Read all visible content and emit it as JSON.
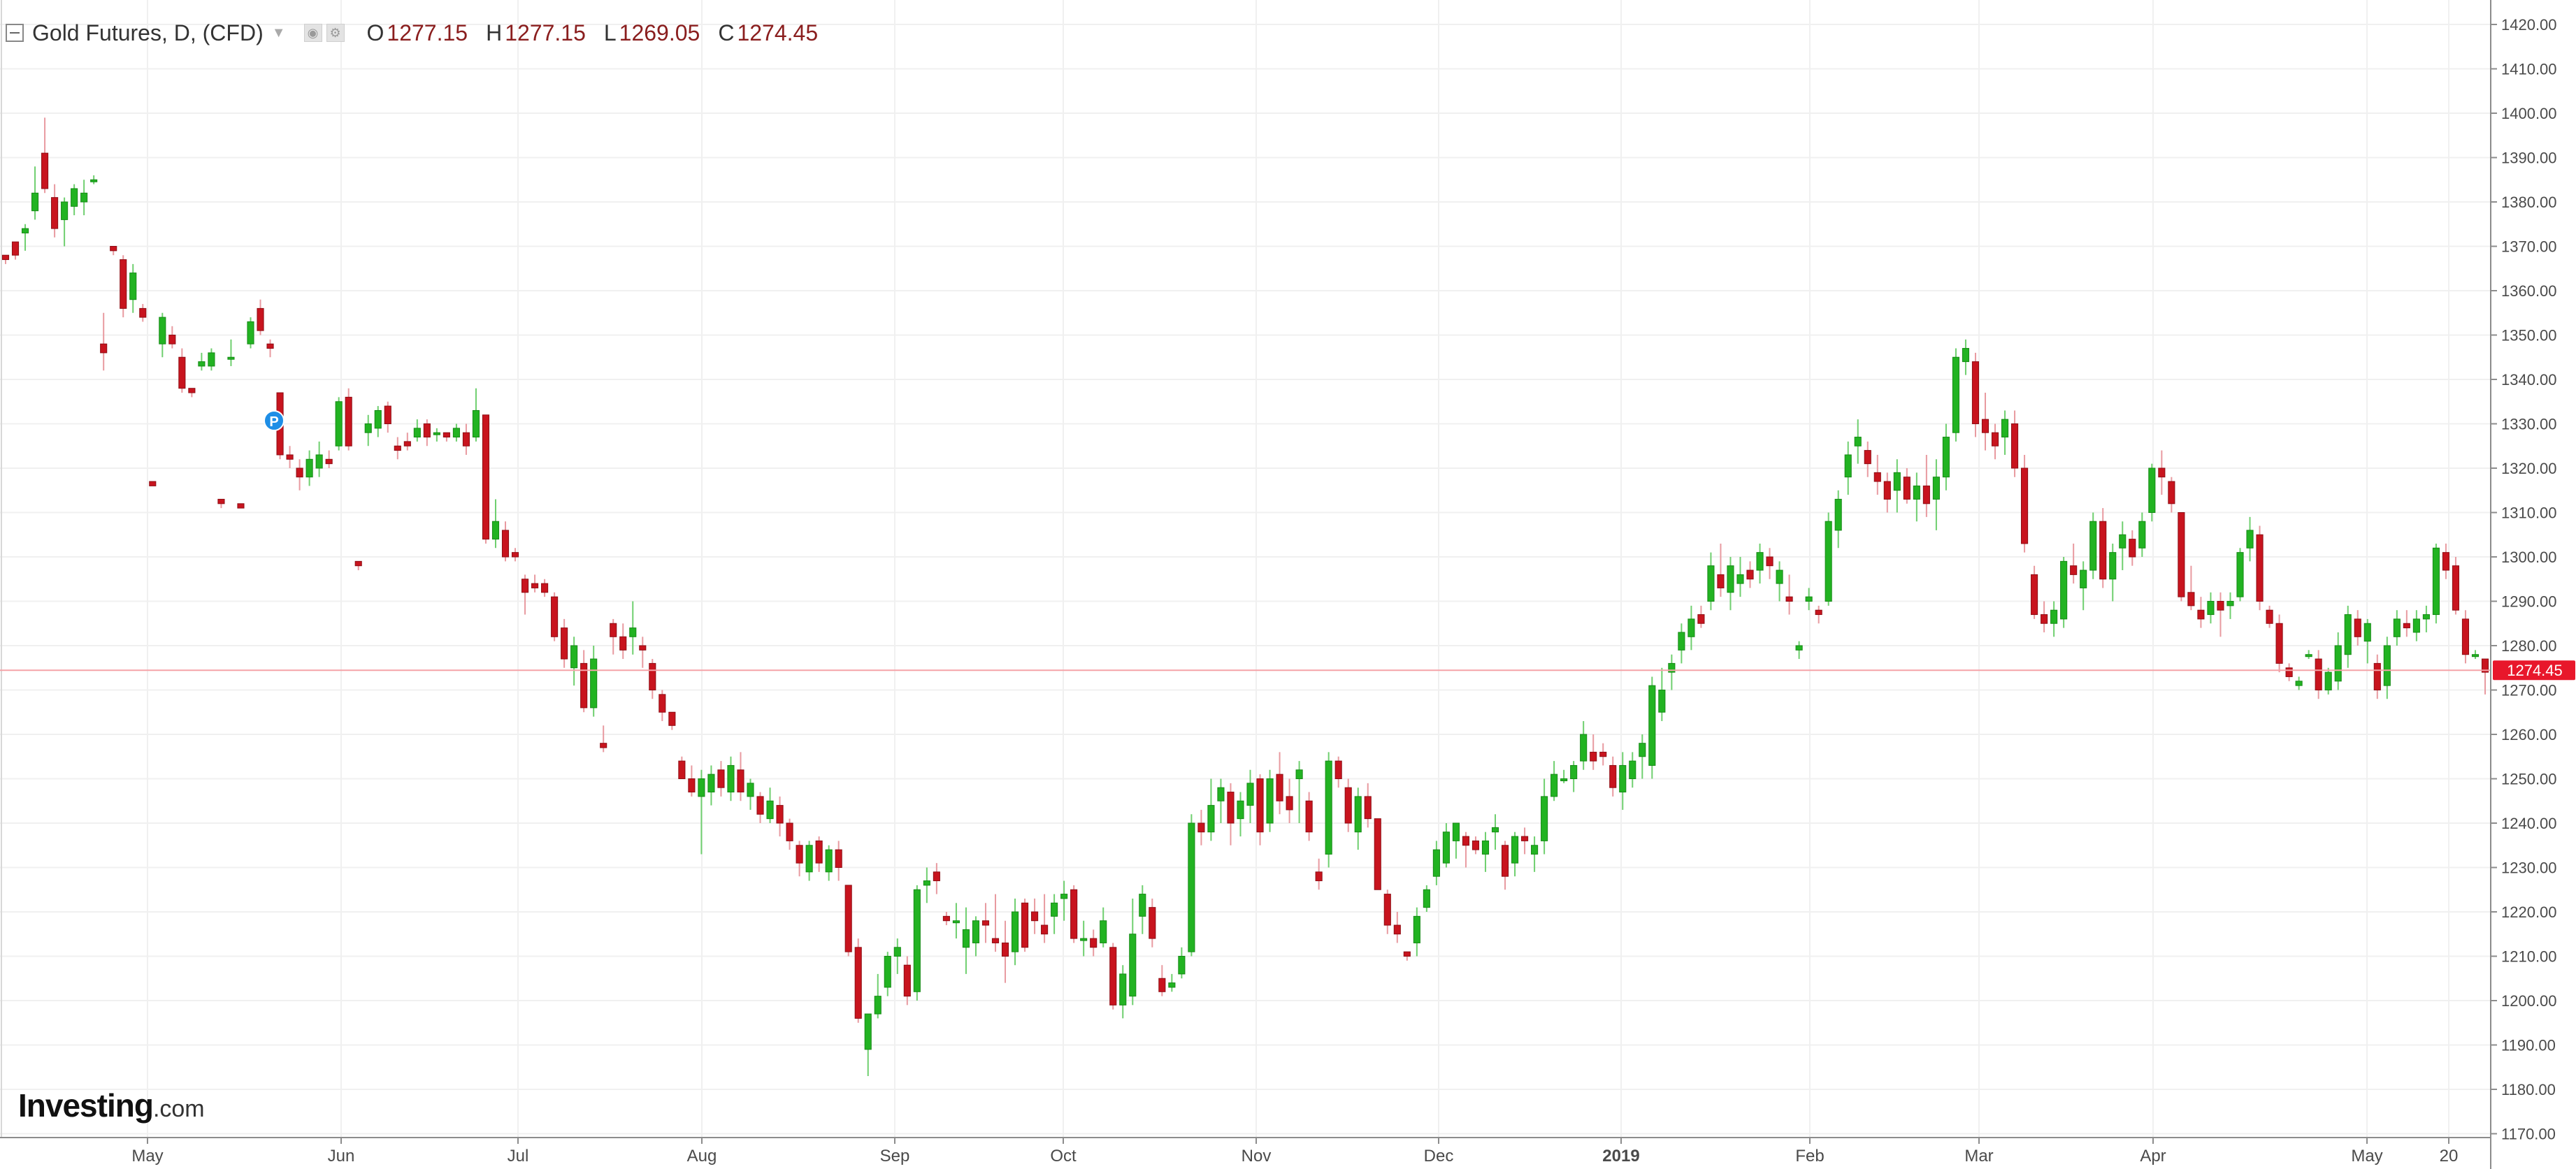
{
  "header": {
    "symbol_title": "Gold Futures, D, (CFD)",
    "open_label": "O",
    "open_value": "1277.15",
    "high_label": "H",
    "high_value": "1277.15",
    "low_label": "L",
    "low_value": "1269.05",
    "close_label": "C",
    "close_value": "1274.45"
  },
  "logo": {
    "name": "Investing",
    "domain": ".com"
  },
  "last_price_badge": "1274.45",
  "marker_label": "P",
  "colors": {
    "up": "#22b322",
    "down": "#c8141e",
    "last_price_line": "#f5a3a8",
    "grid": "#f0f0f0",
    "badge": "#e8172b"
  },
  "chart_data": {
    "type": "candlestick",
    "y_axis": {
      "min": 1170,
      "max": 1420,
      "step": 10,
      "position": "right",
      "tick_labels": [
        "1420.00",
        "1410.00",
        "1400.00",
        "1390.00",
        "1380.00",
        "1370.00",
        "1360.00",
        "1350.00",
        "1340.00",
        "1330.00",
        "1320.00",
        "1310.00",
        "1300.00",
        "1290.00",
        "1280.00",
        "1270.00",
        "1260.00",
        "1250.00",
        "1240.00",
        "1230.00",
        "1220.00",
        "1210.00",
        "1200.00",
        "1190.00",
        "1180.00",
        "1170.00"
      ]
    },
    "x_axis": {
      "tick_labels": [
        "May",
        "Jun",
        "Jul",
        "Aug",
        "Sep",
        "Oct",
        "Nov",
        "Dec",
        "2019",
        "Feb",
        "Mar",
        "Apr",
        "May",
        "20"
      ]
    },
    "last_price": 1274.45,
    "grid": true,
    "candles": [
      [
        1368,
        1368,
        1366,
        1367
      ],
      [
        1371,
        1371,
        1367,
        1368
      ],
      [
        1373,
        1375,
        1369,
        1374
      ],
      [
        1378,
        1388,
        1376,
        1382
      ],
      [
        1391,
        1399,
        1382,
        1383
      ],
      [
        1381,
        1384,
        1372,
        1374
      ],
      [
        1376,
        1381,
        1370,
        1380
      ],
      [
        1379,
        1384,
        1377,
        1383
      ],
      [
        1380,
        1385,
        1377,
        1382
      ],
      [
        1385,
        1386,
        1384,
        1385
      ],
      [
        1348,
        1355,
        1342,
        1346
      ],
      [
        1370,
        1370,
        1368,
        1369
      ],
      [
        1367,
        1368,
        1354,
        1356
      ],
      [
        1358,
        1366,
        1355,
        1364
      ],
      [
        1356,
        1357,
        1353,
        1354
      ],
      [
        1317,
        1317,
        1316,
        1316
      ],
      [
        1348,
        1355,
        1345,
        1354
      ],
      [
        1350,
        1352,
        1347,
        1348
      ],
      [
        1345,
        1347,
        1337,
        1338
      ],
      [
        1338,
        1338,
        1336,
        1337
      ],
      [
        1343,
        1346,
        1342,
        1344
      ],
      [
        1343,
        1347,
        1342,
        1346
      ],
      [
        1313,
        1313,
        1311,
        1312
      ],
      [
        1345,
        1349,
        1343,
        1345
      ],
      [
        1312,
        1312,
        1311,
        1311
      ],
      [
        1348,
        1354,
        1347,
        1353
      ],
      [
        1356,
        1358,
        1350,
        1351
      ],
      [
        1348,
        1349,
        1345,
        1347
      ],
      [
        1337,
        1337,
        1322,
        1323
      ],
      [
        1323,
        1325,
        1320,
        1322
      ],
      [
        1320,
        1322,
        1315,
        1318
      ],
      [
        1318,
        1324,
        1316,
        1322
      ],
      [
        1320,
        1326,
        1318,
        1323
      ],
      [
        1322,
        1324,
        1320,
        1321
      ],
      [
        1325,
        1336,
        1324,
        1335
      ],
      [
        1336,
        1338,
        1324,
        1325
      ],
      [
        1299,
        1299,
        1297,
        1298
      ],
      [
        1328,
        1332,
        1325,
        1330
      ],
      [
        1329,
        1334,
        1327,
        1333
      ],
      [
        1334,
        1335,
        1328,
        1330
      ],
      [
        1325,
        1327,
        1322,
        1324
      ],
      [
        1326,
        1328,
        1324,
        1325
      ],
      [
        1327,
        1331,
        1326,
        1329
      ],
      [
        1330,
        1331,
        1325,
        1327
      ],
      [
        1328,
        1329,
        1326,
        1328
      ],
      [
        1328,
        1328,
        1326,
        1327
      ],
      [
        1327,
        1330,
        1326,
        1329
      ],
      [
        1328,
        1330,
        1323,
        1325
      ],
      [
        1327,
        1338,
        1326,
        1333
      ],
      [
        1332,
        1332,
        1303,
        1304
      ],
      [
        1304,
        1313,
        1302,
        1308
      ],
      [
        1306,
        1308,
        1299,
        1300
      ],
      [
        1301,
        1302,
        1299,
        1300
      ],
      [
        1295,
        1296,
        1287,
        1292
      ],
      [
        1294,
        1296,
        1292,
        1293
      ],
      [
        1294,
        1295,
        1291,
        1292
      ],
      [
        1291,
        1292,
        1281,
        1282
      ],
      [
        1284,
        1286,
        1275,
        1277
      ],
      [
        1275,
        1282,
        1271,
        1280
      ],
      [
        1276,
        1279,
        1265,
        1266
      ],
      [
        1266,
        1280,
        1264,
        1277
      ],
      [
        1258,
        1262,
        1256,
        1257
      ],
      [
        1285,
        1286,
        1278,
        1282
      ],
      [
        1282,
        1285,
        1277,
        1279
      ],
      [
        1282,
        1290,
        1278,
        1284
      ],
      [
        1280,
        1282,
        1275,
        1279
      ],
      [
        1276,
        1277,
        1268,
        1270
      ],
      [
        1269,
        1270,
        1263,
        1265
      ],
      [
        1265,
        1265,
        1261,
        1262
      ],
      [
        1254,
        1255,
        1250,
        1250
      ],
      [
        1250,
        1253,
        1246,
        1247
      ],
      [
        1246,
        1252,
        1233,
        1250
      ],
      [
        1247,
        1253,
        1244,
        1251
      ],
      [
        1252,
        1254,
        1246,
        1248
      ],
      [
        1247,
        1255,
        1245,
        1253
      ],
      [
        1252,
        1256,
        1245,
        1247
      ],
      [
        1246,
        1250,
        1243,
        1249
      ],
      [
        1246,
        1247,
        1240,
        1242
      ],
      [
        1241,
        1248,
        1240,
        1245
      ],
      [
        1244,
        1246,
        1237,
        1240
      ],
      [
        1240,
        1241,
        1234,
        1236
      ],
      [
        1235,
        1236,
        1228,
        1231
      ],
      [
        1229,
        1236,
        1227,
        1235
      ],
      [
        1236,
        1237,
        1229,
        1231
      ],
      [
        1229,
        1235,
        1227,
        1234
      ],
      [
        1234,
        1236,
        1227,
        1230
      ],
      [
        1226,
        1226,
        1210,
        1211
      ],
      [
        1212,
        1214,
        1195,
        1196
      ],
      [
        1189,
        1196,
        1183,
        1197
      ],
      [
        1197,
        1206,
        1196,
        1201
      ],
      [
        1203,
        1211,
        1201,
        1210
      ],
      [
        1210,
        1214,
        1206,
        1212
      ],
      [
        1208,
        1210,
        1199,
        1201
      ],
      [
        1202,
        1226,
        1200,
        1225
      ],
      [
        1226,
        1230,
        1222,
        1227
      ],
      [
        1229,
        1231,
        1224,
        1227
      ],
      [
        1219,
        1220,
        1217,
        1218
      ],
      [
        1218,
        1222,
        1214,
        1218
      ],
      [
        1212,
        1221,
        1206,
        1216
      ],
      [
        1213,
        1219,
        1210,
        1218
      ],
      [
        1218,
        1222,
        1213,
        1217
      ],
      [
        1214,
        1224,
        1211,
        1213
      ],
      [
        1213,
        1218,
        1204,
        1210
      ],
      [
        1211,
        1223,
        1208,
        1220
      ],
      [
        1222,
        1223,
        1211,
        1212
      ],
      [
        1220,
        1223,
        1215,
        1218
      ],
      [
        1217,
        1224,
        1213,
        1215
      ],
      [
        1219,
        1224,
        1215,
        1222
      ],
      [
        1223,
        1227,
        1218,
        1224
      ],
      [
        1225,
        1226,
        1213,
        1214
      ],
      [
        1214,
        1218,
        1210,
        1214
      ],
      [
        1214,
        1216,
        1210,
        1212
      ],
      [
        1213,
        1221,
        1212,
        1218
      ],
      [
        1212,
        1213,
        1198,
        1199
      ],
      [
        1199,
        1208,
        1196,
        1206
      ],
      [
        1201,
        1223,
        1199,
        1215
      ],
      [
        1219,
        1226,
        1215,
        1224
      ],
      [
        1221,
        1223,
        1212,
        1214
      ],
      [
        1205,
        1208,
        1201,
        1202
      ],
      [
        1203,
        1206,
        1202,
        1204
      ],
      [
        1206,
        1212,
        1205,
        1210
      ],
      [
        1211,
        1242,
        1210,
        1240
      ],
      [
        1240,
        1243,
        1235,
        1238
      ],
      [
        1238,
        1250,
        1236,
        1244
      ],
      [
        1245,
        1250,
        1240,
        1248
      ],
      [
        1247,
        1249,
        1235,
        1240
      ],
      [
        1241,
        1247,
        1237,
        1245
      ],
      [
        1244,
        1252,
        1240,
        1249
      ],
      [
        1250,
        1251,
        1235,
        1238
      ],
      [
        1240,
        1252,
        1238,
        1250
      ],
      [
        1251,
        1256,
        1242,
        1245
      ],
      [
        1246,
        1250,
        1240,
        1243
      ],
      [
        1250,
        1254,
        1240,
        1252
      ],
      [
        1245,
        1247,
        1236,
        1238
      ],
      [
        1229,
        1232,
        1225,
        1227
      ],
      [
        1233,
        1256,
        1230,
        1254
      ],
      [
        1254,
        1255,
        1248,
        1250
      ],
      [
        1248,
        1250,
        1238,
        1240
      ],
      [
        1238,
        1248,
        1234,
        1246
      ],
      [
        1246,
        1249,
        1239,
        1241
      ],
      [
        1241,
        1241,
        1225,
        1225
      ],
      [
        1224,
        1225,
        1215,
        1217
      ],
      [
        1217,
        1220,
        1213,
        1215
      ],
      [
        1211,
        1211,
        1209,
        1210
      ],
      [
        1213,
        1221,
        1210,
        1219
      ],
      [
        1221,
        1226,
        1220,
        1225
      ],
      [
        1228,
        1236,
        1226,
        1234
      ],
      [
        1231,
        1240,
        1230,
        1238
      ],
      [
        1236,
        1240,
        1232,
        1240
      ],
      [
        1237,
        1238,
        1230,
        1235
      ],
      [
        1236,
        1237,
        1233,
        1234
      ],
      [
        1233,
        1238,
        1229,
        1236
      ],
      [
        1238,
        1242,
        1234,
        1239
      ],
      [
        1235,
        1236,
        1225,
        1228
      ],
      [
        1231,
        1238,
        1228,
        1237
      ],
      [
        1237,
        1239,
        1233,
        1236
      ],
      [
        1233,
        1237,
        1229,
        1235
      ],
      [
        1236,
        1250,
        1233,
        1246
      ],
      [
        1246,
        1254,
        1245,
        1251
      ],
      [
        1250,
        1252,
        1249,
        1250
      ],
      [
        1250,
        1254,
        1247,
        1253
      ],
      [
        1254,
        1263,
        1252,
        1260
      ],
      [
        1256,
        1260,
        1252,
        1254
      ],
      [
        1256,
        1258,
        1253,
        1255
      ],
      [
        1253,
        1255,
        1246,
        1248
      ],
      [
        1247,
        1256,
        1243,
        1253
      ],
      [
        1250,
        1256,
        1248,
        1254
      ],
      [
        1255,
        1260,
        1250,
        1258
      ],
      [
        1253,
        1273,
        1250,
        1271
      ],
      [
        1265,
        1275,
        1263,
        1270
      ],
      [
        1274,
        1278,
        1270,
        1276
      ],
      [
        1279,
        1285,
        1276,
        1283
      ],
      [
        1282,
        1289,
        1279,
        1286
      ],
      [
        1287,
        1289,
        1284,
        1285
      ],
      [
        1290,
        1301,
        1288,
        1298
      ],
      [
        1296,
        1303,
        1291,
        1293
      ],
      [
        1292,
        1300,
        1288,
        1298
      ],
      [
        1294,
        1300,
        1291,
        1296
      ],
      [
        1297,
        1299,
        1293,
        1295
      ],
      [
        1297,
        1303,
        1294,
        1301
      ],
      [
        1300,
        1302,
        1295,
        1298
      ],
      [
        1294,
        1299,
        1290,
        1297
      ],
      [
        1291,
        1296,
        1287,
        1290
      ],
      [
        1279,
        1281,
        1277,
        1280
      ],
      [
        1290,
        1293,
        1288,
        1291
      ],
      [
        1288,
        1289,
        1285,
        1287
      ],
      [
        1290,
        1310,
        1289,
        1308
      ],
      [
        1306,
        1315,
        1302,
        1313
      ],
      [
        1318,
        1326,
        1314,
        1323
      ],
      [
        1325,
        1331,
        1321,
        1327
      ],
      [
        1324,
        1326,
        1318,
        1321
      ],
      [
        1319,
        1323,
        1314,
        1317
      ],
      [
        1317,
        1319,
        1310,
        1313
      ],
      [
        1315,
        1322,
        1310,
        1319
      ],
      [
        1318,
        1320,
        1312,
        1313
      ],
      [
        1313,
        1319,
        1308,
        1316
      ],
      [
        1316,
        1323,
        1309,
        1312
      ],
      [
        1313,
        1322,
        1306,
        1318
      ],
      [
        1318,
        1330,
        1315,
        1327
      ],
      [
        1328,
        1347,
        1326,
        1345
      ],
      [
        1344,
        1349,
        1341,
        1347
      ],
      [
        1344,
        1346,
        1327,
        1330
      ],
      [
        1331,
        1337,
        1324,
        1328
      ],
      [
        1328,
        1330,
        1322,
        1325
      ],
      [
        1327,
        1333,
        1323,
        1331
      ],
      [
        1330,
        1333,
        1318,
        1320
      ],
      [
        1320,
        1323,
        1301,
        1303
      ],
      [
        1296,
        1298,
        1286,
        1287
      ],
      [
        1287,
        1290,
        1283,
        1285
      ],
      [
        1285,
        1290,
        1282,
        1288
      ],
      [
        1286,
        1300,
        1284,
        1299
      ],
      [
        1298,
        1303,
        1294,
        1296
      ],
      [
        1293,
        1299,
        1288,
        1297
      ],
      [
        1297,
        1310,
        1295,
        1308
      ],
      [
        1308,
        1311,
        1293,
        1295
      ],
      [
        1295,
        1303,
        1290,
        1301
      ],
      [
        1302,
        1308,
        1297,
        1305
      ],
      [
        1304,
        1306,
        1298,
        1300
      ],
      [
        1302,
        1310,
        1300,
        1308
      ],
      [
        1310,
        1321,
        1308,
        1320
      ],
      [
        1320,
        1324,
        1314,
        1318
      ],
      [
        1317,
        1318,
        1310,
        1312
      ],
      [
        1310,
        1310,
        1290,
        1291
      ],
      [
        1292,
        1298,
        1288,
        1289
      ],
      [
        1288,
        1291,
        1284,
        1286
      ],
      [
        1287,
        1292,
        1285,
        1290
      ],
      [
        1290,
        1292,
        1282,
        1288
      ],
      [
        1289,
        1292,
        1286,
        1290
      ],
      [
        1291,
        1302,
        1290,
        1301
      ],
      [
        1302,
        1309,
        1299,
        1306
      ],
      [
        1305,
        1307,
        1288,
        1290
      ],
      [
        1288,
        1289,
        1284,
        1285
      ],
      [
        1285,
        1287,
        1274,
        1276
      ],
      [
        1275,
        1276,
        1272,
        1273
      ],
      [
        1271,
        1273,
        1270,
        1272
      ],
      [
        1278,
        1279,
        1277,
        1278
      ],
      [
        1277,
        1279,
        1268,
        1270
      ],
      [
        1270,
        1275,
        1269,
        1274
      ],
      [
        1272,
        1283,
        1270,
        1280
      ],
      [
        1278,
        1289,
        1275,
        1287
      ],
      [
        1286,
        1288,
        1280,
        1282
      ],
      [
        1281,
        1286,
        1276,
        1285
      ],
      [
        1276,
        1278,
        1268,
        1270
      ],
      [
        1271,
        1282,
        1268,
        1280
      ],
      [
        1282,
        1288,
        1280,
        1286
      ],
      [
        1285,
        1288,
        1282,
        1284
      ],
      [
        1283,
        1288,
        1281,
        1286
      ],
      [
        1286,
        1289,
        1283,
        1287
      ],
      [
        1287,
        1303,
        1285,
        1302
      ],
      [
        1301,
        1303,
        1295,
        1297
      ],
      [
        1298,
        1300,
        1287,
        1288
      ],
      [
        1286,
        1288,
        1276,
        1278
      ],
      [
        1278,
        1279,
        1277,
        1278
      ],
      [
        1277,
        1277,
        1269,
        1274
      ]
    ]
  }
}
